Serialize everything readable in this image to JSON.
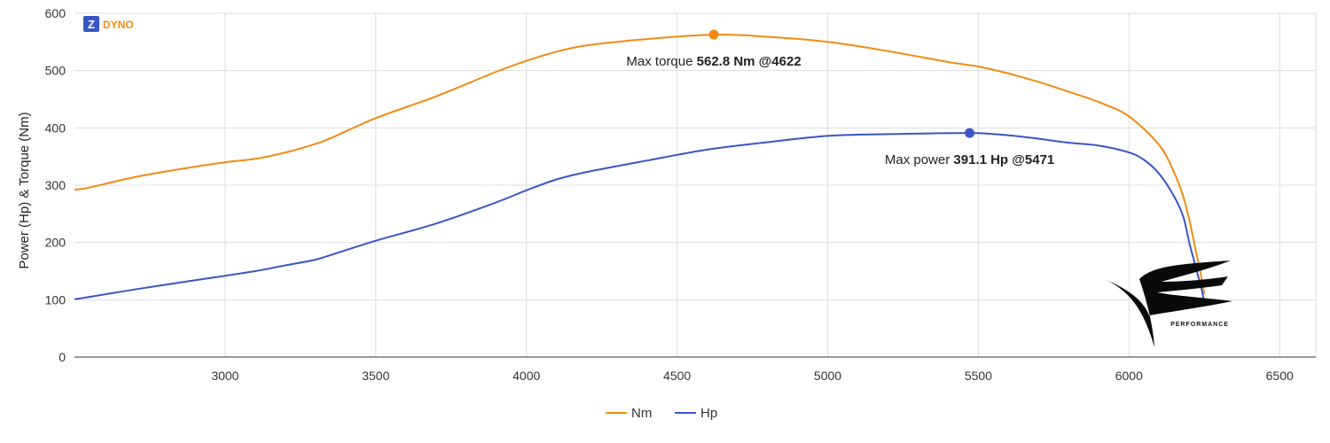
{
  "chart_data": {
    "type": "line",
    "ylabel": "Power (Hp) & Torque (Nm)",
    "xlabel": "",
    "xlim": [
      2500,
      6620
    ],
    "ylim": [
      0,
      600
    ],
    "x_ticks": [
      3000,
      3500,
      4000,
      4500,
      5000,
      5500,
      6000,
      6500
    ],
    "y_ticks": [
      0,
      100,
      200,
      300,
      400,
      500,
      600
    ],
    "grid": true,
    "legend_position": "bottom-center",
    "series": [
      {
        "name": "Nm",
        "color": "#f28a14",
        "x": [
          2500,
          2550,
          2700,
          2850,
          3000,
          3100,
          3200,
          3300,
          3350,
          3500,
          3700,
          3900,
          4000,
          4100,
          4200,
          4400,
          4622,
          4800,
          5000,
          5200,
          5400,
          5500,
          5600,
          5700,
          5800,
          5900,
          6000,
          6100,
          6150,
          6180,
          6200,
          6220,
          6240,
          6250
        ],
        "values": [
          292,
          296,
          314,
          328,
          340,
          346,
          357,
          372,
          382,
          417,
          455,
          498,
          517,
          533,
          544,
          555,
          562.8,
          559,
          550,
          534,
          515,
          507,
          495,
          480,
          463,
          445,
          420,
          370,
          322,
          280,
          240,
          190,
          140,
          110
        ]
      },
      {
        "name": "Hp",
        "color": "#3b55c4",
        "x": [
          2500,
          2550,
          2700,
          2850,
          3000,
          3100,
          3200,
          3300,
          3350,
          3500,
          3700,
          3900,
          4000,
          4100,
          4200,
          4400,
          4600,
          4800,
          5000,
          5200,
          5471,
          5600,
          5700,
          5800,
          5900,
          6000,
          6050,
          6100,
          6150,
          6180,
          6200,
          6220,
          6240,
          6250
        ],
        "values": [
          101,
          105,
          118,
          130,
          142,
          150,
          160,
          170,
          178,
          203,
          233,
          270,
          291,
          310,
          323,
          343,
          362,
          375,
          386,
          389,
          391.1,
          387,
          381,
          374,
          369,
          357,
          344,
          320,
          280,
          245,
          200,
          160,
          120,
          95
        ]
      }
    ],
    "annotations": [
      {
        "series": "Nm",
        "x": 4622,
        "y": 562.8,
        "prefix": "Max torque ",
        "value": "562.8 Nm @4622"
      },
      {
        "series": "Hp",
        "x": 5471,
        "y": 391.1,
        "prefix": "Max power ",
        "value": "391.1 Hp @5471"
      }
    ]
  },
  "brand_logo": {
    "letter": "Z",
    "text": "DYNO",
    "letter_bg": "#3b55c4",
    "text_color": "#f28a14"
  },
  "watermark": {
    "text": "PERFORMANCE"
  }
}
